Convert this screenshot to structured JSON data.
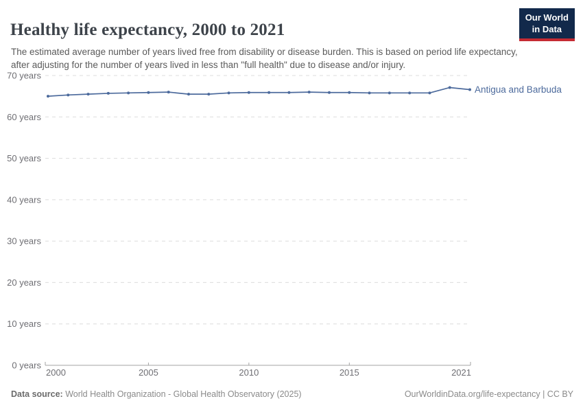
{
  "header": {
    "title": "Healthy life expectancy, 2000 to 2021",
    "subtitle": "The estimated average number of years lived free from disability or disease burden. This is based on period life expectancy, after adjusting for the number of years lived in less than \"full health\" due to disease and/or injury.",
    "logo": {
      "line1": "Our World",
      "line2": "in Data"
    }
  },
  "chart_data": {
    "type": "line",
    "title": "Healthy life expectancy, 2000 to 2021",
    "xlabel": "",
    "ylabel": "",
    "x": [
      2000,
      2001,
      2002,
      2003,
      2004,
      2005,
      2006,
      2007,
      2008,
      2009,
      2010,
      2011,
      2012,
      2013,
      2014,
      2015,
      2016,
      2017,
      2018,
      2019,
      2020,
      2021
    ],
    "series": [
      {
        "name": "Antigua and Barbuda",
        "color": "#4C6A9C",
        "values": [
          65.0,
          65.3,
          65.5,
          65.7,
          65.8,
          65.9,
          66.0,
          65.5,
          65.5,
          65.8,
          65.9,
          65.9,
          65.9,
          66.0,
          65.9,
          65.9,
          65.8,
          65.8,
          65.8,
          65.8,
          67.1,
          66.6
        ]
      }
    ],
    "xlim": [
      2000,
      2021
    ],
    "ylim": [
      0,
      70
    ],
    "x_ticks": [
      2000,
      2005,
      2010,
      2015,
      2021
    ],
    "y_ticks": [
      0,
      10,
      20,
      30,
      40,
      50,
      60,
      70
    ],
    "y_tick_suffix": " years",
    "grid": "horizontal-dashed",
    "legend_position": "end-of-line"
  },
  "footer": {
    "source_label": "Data source:",
    "source_text": " World Health Organization - Global Health Observatory (2025)",
    "right_text": "OurWorldinData.org/life-expectancy | CC BY"
  },
  "colors": {
    "accent": "#4C6A9C",
    "grid": "#dcdcdc",
    "axis": "#a3a3a3",
    "tick_text": "#6e6e73",
    "logo_navy": "#12294b",
    "logo_red": "#c52b33"
  }
}
